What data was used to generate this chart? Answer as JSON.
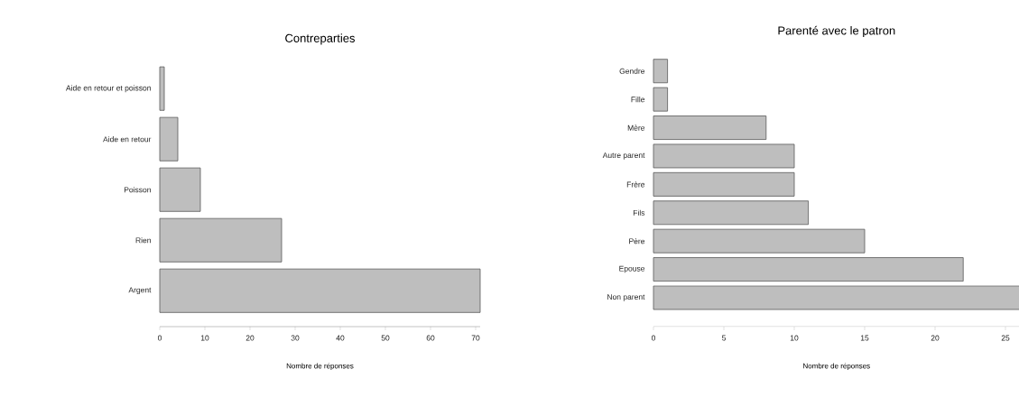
{
  "chart_data": [
    {
      "type": "bar",
      "orientation": "horizontal",
      "title": "Contreparties",
      "xlabel": "Nombre de réponses",
      "categories": [
        "Aide en retour et poisson",
        "Aide en retour",
        "Poisson",
        "Rien",
        "Argent"
      ],
      "values": [
        1,
        4,
        9,
        27,
        71
      ],
      "color": "#bebebe",
      "xlim": [
        0,
        71
      ],
      "xticks": [
        0,
        10,
        20,
        30,
        40,
        50,
        60,
        70
      ],
      "grid": false
    },
    {
      "type": "bar",
      "orientation": "horizontal",
      "title": "Parenté avec le patron",
      "xlabel": "Nombre de réponses",
      "categories": [
        "Gendre",
        "Fille",
        "Mère",
        "Autre parent",
        "Frère",
        "Fils",
        "Père",
        "Epouse",
        "Non parent"
      ],
      "values": [
        1,
        1,
        8,
        10,
        10,
        11,
        15,
        22,
        26
      ],
      "color": "#bebebe",
      "xlim": [
        0,
        26
      ],
      "xticks": [
        0,
        5,
        10,
        15,
        20,
        25
      ],
      "grid": false
    }
  ]
}
